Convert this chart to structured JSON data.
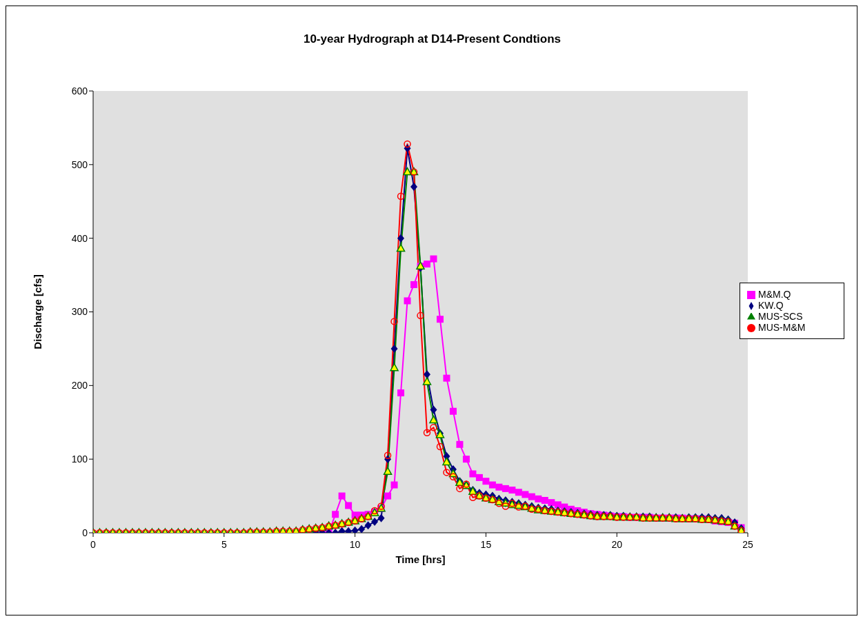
{
  "chart_data": {
    "type": "line",
    "title": "10-year Hydrograph at D14-Present Condtions",
    "xlabel": "Time [hrs]",
    "ylabel": "Discharge [cfs]",
    "x": [
      0,
      0.25,
      0.5,
      0.75,
      1,
      1.25,
      1.5,
      1.75,
      2,
      2.25,
      2.5,
      2.75,
      3,
      3.25,
      3.5,
      3.75,
      4,
      4.25,
      4.5,
      4.75,
      5,
      5.25,
      5.5,
      5.75,
      6,
      6.25,
      6.5,
      6.75,
      7,
      7.25,
      7.5,
      7.75,
      8,
      8.25,
      8.5,
      8.75,
      9,
      9.25,
      9.5,
      9.75,
      10,
      10.25,
      10.5,
      10.75,
      11,
      11.25,
      11.5,
      11.75,
      12,
      12.25,
      12.5,
      12.75,
      13,
      13.25,
      13.5,
      13.75,
      14,
      14.25,
      14.5,
      14.75,
      15,
      15.25,
      15.5,
      15.75,
      16,
      16.25,
      16.5,
      16.75,
      17,
      17.25,
      17.5,
      17.75,
      18,
      18.25,
      18.5,
      18.75,
      19,
      19.25,
      19.5,
      19.75,
      20,
      20.25,
      20.5,
      20.75,
      21,
      21.25,
      21.5,
      21.75,
      22,
      22.25,
      22.5,
      22.75,
      23,
      23.25,
      23.5,
      23.75,
      24,
      24.25,
      24.5,
      24.75
    ],
    "series": [
      {
        "name": "M&M.Q",
        "color": "#ff00ff",
        "marker": "square",
        "values": [
          null,
          null,
          null,
          null,
          null,
          null,
          null,
          null,
          null,
          null,
          null,
          null,
          null,
          null,
          null,
          null,
          null,
          null,
          null,
          null,
          null,
          null,
          null,
          null,
          null,
          null,
          null,
          null,
          null,
          null,
          null,
          null,
          null,
          null,
          0,
          0,
          0,
          25,
          50,
          37,
          24,
          24,
          25,
          28,
          33,
          50,
          65,
          190,
          315,
          337,
          362,
          365,
          372,
          290,
          210,
          165,
          120,
          100,
          80,
          75,
          70,
          65,
          62,
          60,
          58,
          55,
          52,
          49,
          46,
          44,
          41,
          38,
          35,
          32,
          30,
          28,
          26,
          25,
          24,
          23,
          22,
          22,
          21,
          21,
          21,
          21,
          20,
          20,
          20,
          20,
          20,
          19,
          19,
          19,
          18,
          16,
          15,
          14,
          13,
          7
        ]
      },
      {
        "name": "KW.Q",
        "color": "#000080",
        "marker": "diamond",
        "values": [
          null,
          null,
          null,
          null,
          null,
          null,
          null,
          null,
          null,
          null,
          null,
          null,
          null,
          null,
          null,
          null,
          null,
          null,
          null,
          null,
          null,
          null,
          null,
          null,
          null,
          null,
          null,
          null,
          null,
          null,
          null,
          null,
          null,
          null,
          0,
          0,
          0,
          0,
          2,
          2,
          3,
          5,
          10,
          15,
          20,
          100,
          250,
          400,
          522,
          470,
          360,
          215,
          167,
          135,
          104,
          86,
          70,
          65,
          58,
          54,
          52,
          50,
          46,
          44,
          42,
          40,
          38,
          36,
          34,
          33,
          32,
          30,
          29,
          28,
          27,
          26,
          25,
          24,
          24,
          24,
          23,
          23,
          22,
          22,
          22,
          22,
          21,
          21,
          21,
          21,
          20,
          21,
          21,
          21,
          21,
          20,
          20,
          18,
          14,
          6
        ]
      },
      {
        "name": "MUS-SCS",
        "color": "#008000",
        "marker": "triangle",
        "values": [
          0,
          0,
          0,
          0,
          0,
          0,
          0,
          0,
          0,
          0,
          0,
          0,
          0,
          0,
          0,
          0,
          0,
          0,
          0,
          0,
          0,
          0,
          0,
          0,
          1,
          1,
          1,
          1,
          2,
          2,
          2,
          2,
          4,
          5,
          6,
          7,
          9,
          10,
          12,
          14,
          16,
          19,
          22,
          27,
          33,
          83,
          224,
          386,
          490,
          490,
          362,
          205,
          153,
          133,
          96,
          80,
          68,
          64,
          56,
          50,
          47,
          45,
          42,
          40,
          38,
          37,
          35,
          33,
          31,
          30,
          29,
          28,
          27,
          26,
          25,
          24,
          23,
          22,
          22,
          22,
          21,
          21,
          21,
          21,
          20,
          20,
          20,
          20,
          20,
          19,
          19,
          19,
          19,
          18,
          18,
          17,
          16,
          15,
          9,
          3
        ]
      },
      {
        "name": "MUS-M&M",
        "color": "#ff0000",
        "marker": "circle",
        "values": [
          0,
          0,
          0,
          0,
          0,
          0,
          0,
          0,
          0,
          0,
          0,
          0,
          0,
          0,
          0,
          0,
          0,
          0,
          0,
          0,
          0,
          0,
          0,
          0,
          1,
          1,
          1,
          1,
          2,
          2,
          2,
          2,
          4,
          5,
          6,
          7,
          9,
          10,
          12,
          14,
          16,
          19,
          22,
          30,
          36,
          105,
          287,
          457,
          528,
          490,
          295,
          136,
          143,
          117,
          82,
          76,
          60,
          66,
          48,
          50,
          47,
          45,
          40,
          36,
          40,
          35,
          36,
          32,
          32,
          30,
          29,
          28,
          27,
          26,
          25,
          24,
          23,
          22,
          22,
          22,
          21,
          21,
          21,
          21,
          20,
          20,
          20,
          20,
          20,
          19,
          19,
          19,
          19,
          18,
          18,
          17,
          16,
          15,
          9,
          3
        ]
      }
    ],
    "xlim": [
      0,
      25
    ],
    "xticks": [
      0,
      5,
      10,
      15,
      20,
      25
    ],
    "ylim": [
      0,
      600
    ],
    "yticks": [
      0,
      100,
      200,
      300,
      400,
      500,
      600
    ],
    "grid": false,
    "legend": "right"
  }
}
